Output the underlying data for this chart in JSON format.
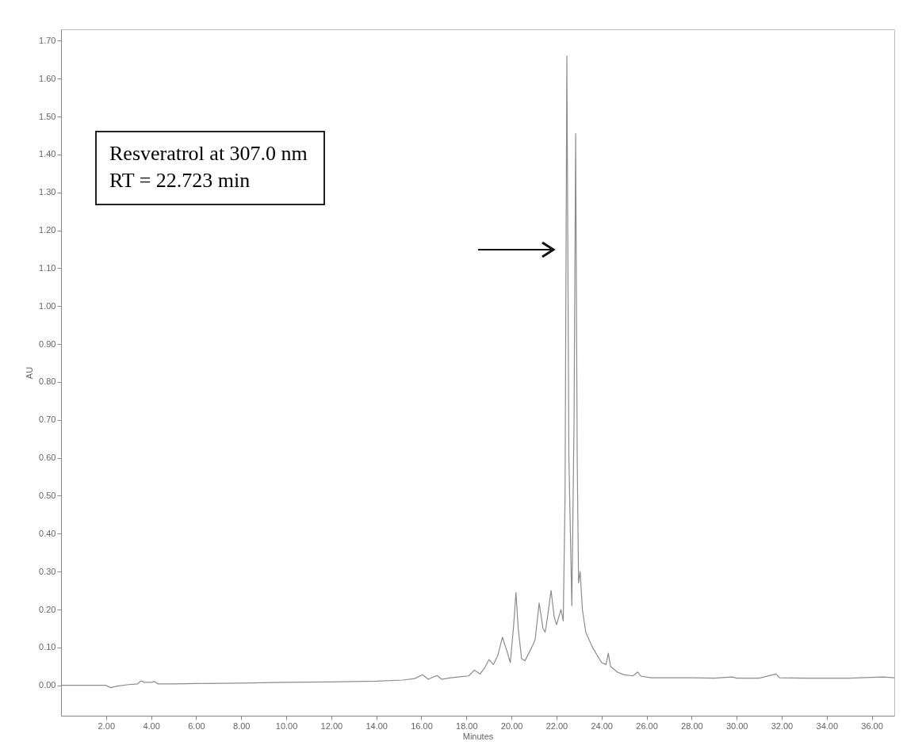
{
  "chart_data": {
    "type": "line",
    "xlabel": "Minutes",
    "ylabel": "AU",
    "annotations": [
      "Resveratrol at 307.0 nm\nRT = 22.723 min"
    ],
    "xlim": [
      0,
      37
    ],
    "ylim": [
      -0.08,
      1.73
    ],
    "xticks": [
      {
        "value": 2,
        "label": "2.00"
      },
      {
        "value": 4,
        "label": "4.00"
      },
      {
        "value": 6,
        "label": "6.00"
      },
      {
        "value": 8,
        "label": "8.00"
      },
      {
        "value": 10,
        "label": "10.00"
      },
      {
        "value": 12,
        "label": "12.00"
      },
      {
        "value": 14,
        "label": "14.00"
      },
      {
        "value": 16,
        "label": "16.00"
      },
      {
        "value": 18,
        "label": "18.00"
      },
      {
        "value": 20,
        "label": "20.00"
      },
      {
        "value": 22,
        "label": "22.00"
      },
      {
        "value": 24,
        "label": "24.00"
      },
      {
        "value": 26,
        "label": "26.00"
      },
      {
        "value": 28,
        "label": "28.00"
      },
      {
        "value": 30,
        "label": "30.00"
      },
      {
        "value": 32,
        "label": "32.00"
      },
      {
        "value": 34,
        "label": "34.00"
      },
      {
        "value": 36,
        "label": "36.00"
      }
    ],
    "yticks": [
      {
        "value": 0,
        "label": "0.00"
      },
      {
        "value": 0.1,
        "label": "0.10"
      },
      {
        "value": 0.2,
        "label": "0.20"
      },
      {
        "value": 0.3,
        "label": "0.30"
      },
      {
        "value": 0.4,
        "label": "0.40"
      },
      {
        "value": 0.5,
        "label": "0.50"
      },
      {
        "value": 0.6,
        "label": "0.60"
      },
      {
        "value": 0.7,
        "label": "0.70"
      },
      {
        "value": 0.8,
        "label": "0.80"
      },
      {
        "value": 0.9,
        "label": "0.90"
      },
      {
        "value": 1,
        "label": "1.00"
      },
      {
        "value": 1.1,
        "label": "1.10"
      },
      {
        "value": 1.2,
        "label": "1.20"
      },
      {
        "value": 1.3,
        "label": "1.30"
      },
      {
        "value": 1.4,
        "label": "1.40"
      },
      {
        "value": 1.5,
        "label": "1.50"
      },
      {
        "value": 1.6,
        "label": "1.60"
      },
      {
        "value": 1.7,
        "label": "1.70"
      }
    ],
    "grid": false,
    "x": [
      0,
      1,
      2,
      2.2,
      2.5,
      3,
      3.4,
      3.55,
      3.7,
      4.0,
      4.15,
      4.3,
      5,
      6,
      8,
      10,
      12,
      14,
      15.2,
      15.7,
      16.05,
      16.3,
      16.7,
      16.9,
      17.3,
      17.8,
      18.1,
      18.35,
      18.6,
      18.8,
      19.0,
      19.2,
      19.4,
      19.6,
      19.8,
      19.95,
      20.1,
      20.2,
      20.3,
      20.45,
      20.6,
      20.9,
      21.05,
      21.23,
      21.4,
      21.5,
      21.6,
      21.76,
      21.9,
      22.0,
      22.1,
      22.2,
      22.3,
      22.38,
      22.46,
      22.55,
      22.68,
      22.78,
      22.85,
      22.92,
      22.98,
      23.05,
      23.15,
      23.3,
      23.6,
      24.0,
      24.2,
      24.3,
      24.4,
      24.7,
      25.0,
      25.4,
      25.6,
      25.75,
      26.2,
      27,
      28,
      29,
      29.8,
      30,
      31,
      31.75,
      31.9,
      33,
      35,
      36.5,
      37
    ],
    "series": [
      {
        "color": "#8c8c8c",
        "values": [
          0,
          0,
          0,
          -0.006,
          -0.002,
          0.002,
          0.004,
          0.012,
          0.008,
          0.008,
          0.01,
          0.004,
          0.004,
          0.005,
          0.006,
          0.008,
          0.009,
          0.011,
          0.014,
          0.018,
          0.028,
          0.016,
          0.026,
          0.016,
          0.02,
          0.023,
          0.025,
          0.04,
          0.03,
          0.045,
          0.068,
          0.055,
          0.08,
          0.127,
          0.09,
          0.06,
          0.16,
          0.245,
          0.15,
          0.07,
          0.065,
          0.1,
          0.12,
          0.217,
          0.15,
          0.14,
          0.18,
          0.25,
          0.18,
          0.16,
          0.18,
          0.2,
          0.17,
          0.5,
          1.66,
          0.6,
          0.21,
          0.7,
          1.455,
          0.6,
          0.27,
          0.3,
          0.2,
          0.14,
          0.1,
          0.06,
          0.055,
          0.085,
          0.05,
          0.035,
          0.028,
          0.025,
          0.035,
          0.024,
          0.02,
          0.02,
          0.02,
          0.019,
          0.022,
          0.019,
          0.019,
          0.03,
          0.02,
          0.019,
          0.019,
          0.022,
          0.02
        ]
      }
    ]
  }
}
